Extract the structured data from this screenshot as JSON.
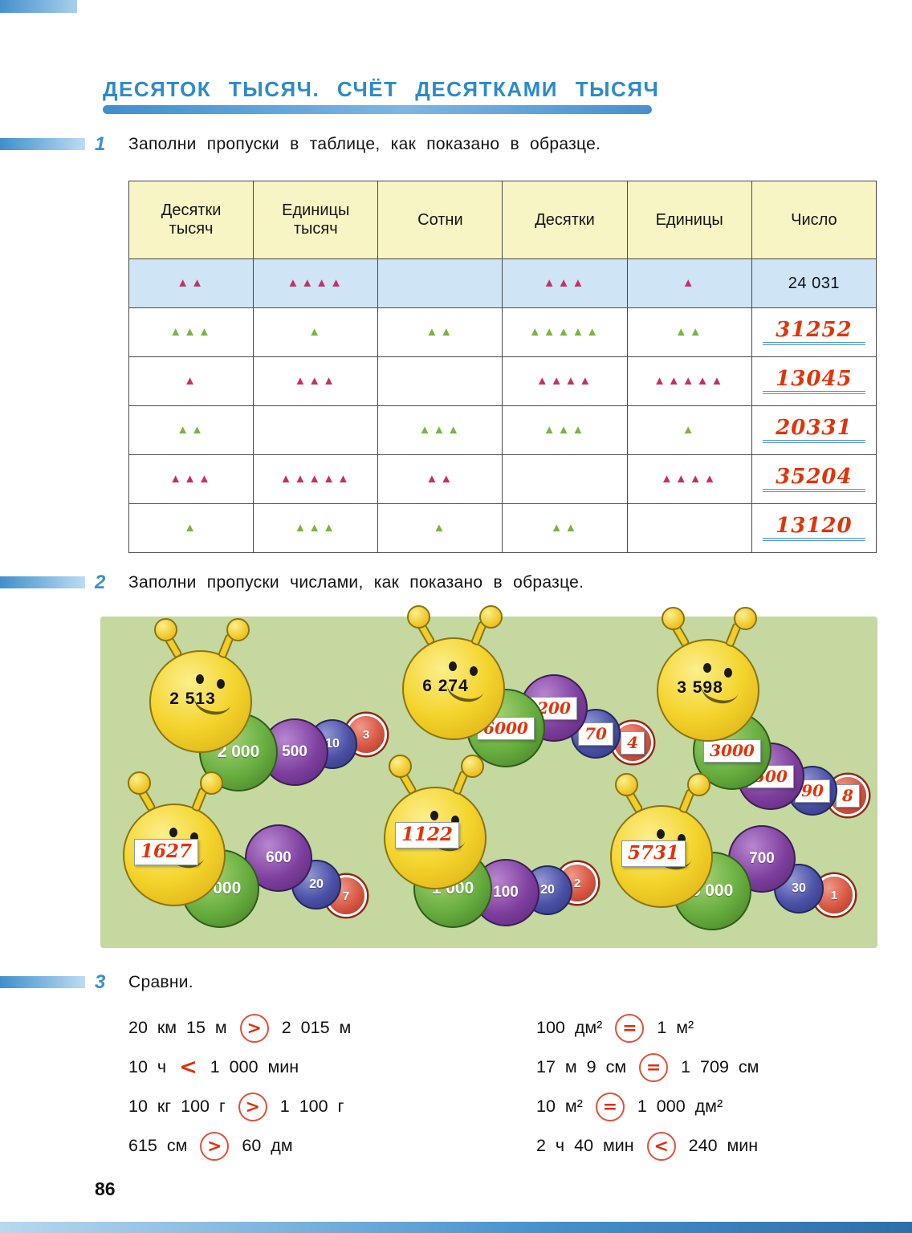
{
  "page": {
    "title": "ДЕСЯТОК ТЫСЯЧ. СЧЁТ ДЕСЯТКАМИ ТЫСЯЧ",
    "number": "86"
  },
  "colors": {
    "title_blue": "#2d8ac9",
    "handwriting_red": "#e2330a",
    "triangle_pink": "#c73060",
    "triangle_green": "#7cb342",
    "panel_green": "#c4d8a0",
    "header_yellow": "#f8f5c4",
    "example_row_blue": "#cfe4f4"
  },
  "ex1": {
    "num": "1",
    "text": "Заполни пропуски в таблице, как показано в образце.",
    "table": {
      "headers": [
        "Десятки тысяч",
        "Единицы тысяч",
        "Сотни",
        "Десятки",
        "Единицы",
        "Число"
      ],
      "rows": [
        {
          "counts": [
            2,
            4,
            0,
            3,
            1
          ],
          "color": "pink",
          "number": "24 031",
          "handwritten": false,
          "example": true
        },
        {
          "counts": [
            3,
            1,
            2,
            5,
            2
          ],
          "color": "green",
          "number": "31252",
          "handwritten": true,
          "example": false
        },
        {
          "counts": [
            1,
            3,
            0,
            4,
            5
          ],
          "color": "pink",
          "number": "13045",
          "handwritten": true,
          "example": false
        },
        {
          "counts": [
            2,
            0,
            3,
            3,
            1
          ],
          "color": "green",
          "number": "20331",
          "handwritten": true,
          "example": false
        },
        {
          "counts": [
            3,
            5,
            2,
            0,
            4
          ],
          "color": "pink",
          "number": "35204",
          "handwritten": true,
          "example": false
        },
        {
          "counts": [
            1,
            3,
            1,
            2,
            0
          ],
          "color": "green",
          "number": "13120",
          "handwritten": true,
          "example": false
        }
      ]
    }
  },
  "ex2": {
    "num": "2",
    "text": "Заполни пропуски числами, как показано в образце.",
    "caterpillars": [
      {
        "head": "2 513",
        "head_hw": false,
        "segments": [
          {
            "v": "2 000",
            "c": "green",
            "hw": false
          },
          {
            "v": "500",
            "c": "purple",
            "hw": false
          },
          {
            "v": "10",
            "c": "blue",
            "hw": false
          },
          {
            "v": "3",
            "c": "red",
            "hw": false
          }
        ]
      },
      {
        "head": "6 274",
        "head_hw": false,
        "segments": [
          {
            "v": "6000",
            "c": "green",
            "hw": true
          },
          {
            "v": "200",
            "c": "purple",
            "hw": true
          },
          {
            "v": "70",
            "c": "blue",
            "hw": true
          },
          {
            "v": "4",
            "c": "red",
            "hw": true
          }
        ]
      },
      {
        "head": "3 598",
        "head_hw": false,
        "segments": [
          {
            "v": "3000",
            "c": "green",
            "hw": true
          },
          {
            "v": "500",
            "c": "purple",
            "hw": true
          },
          {
            "v": "90",
            "c": "blue",
            "hw": true
          },
          {
            "v": "8",
            "c": "red",
            "hw": true
          }
        ]
      },
      {
        "head": "1627",
        "head_hw": true,
        "segments": [
          {
            "v": "1 000",
            "c": "green",
            "hw": false
          },
          {
            "v": "600",
            "c": "purple",
            "hw": false
          },
          {
            "v": "20",
            "c": "blue",
            "hw": false
          },
          {
            "v": "7",
            "c": "red",
            "hw": false
          }
        ]
      },
      {
        "head": "1122",
        "head_hw": true,
        "segments": [
          {
            "v": "1 000",
            "c": "green",
            "hw": false
          },
          {
            "v": "100",
            "c": "purple",
            "hw": false
          },
          {
            "v": "20",
            "c": "blue",
            "hw": false
          },
          {
            "v": "2",
            "c": "red",
            "hw": false
          }
        ]
      },
      {
        "head": "5731",
        "head_hw": true,
        "segments": [
          {
            "v": "5 000",
            "c": "green",
            "hw": false
          },
          {
            "v": "700",
            "c": "purple",
            "hw": false
          },
          {
            "v": "30",
            "c": "blue",
            "hw": false
          },
          {
            "v": "1",
            "c": "red",
            "hw": false
          }
        ]
      }
    ]
  },
  "ex3": {
    "num": "3",
    "text": "Сравни.",
    "left": [
      {
        "a": "20 км 15 м",
        "sign": ">",
        "b": "2 015 м",
        "circled": true
      },
      {
        "a": "10 ч",
        "sign": "<",
        "b": "1 000 мин",
        "circled": false
      },
      {
        "a": "10 кг 100 г",
        "sign": ">",
        "b": "1 100 г",
        "circled": true
      },
      {
        "a": "615 см",
        "sign": ">",
        "b": "60 дм",
        "circled": true
      }
    ],
    "right": [
      {
        "a": "100 дм²",
        "sign": "=",
        "b": "1 м²",
        "circled": true
      },
      {
        "a": "17 м 9 см",
        "sign": "=",
        "b": "1 709 см",
        "circled": true
      },
      {
        "a": "10 м²",
        "sign": "=",
        "b": "1 000 дм²",
        "circled": true
      },
      {
        "a": "2 ч 40 мин",
        "sign": "<",
        "b": "240 мин",
        "circled": true
      }
    ]
  }
}
